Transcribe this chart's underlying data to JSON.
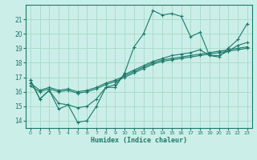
{
  "xlabel": "Humidex (Indice chaleur)",
  "bg_color": "#cceee8",
  "grid_color": "#aaddcc",
  "line_color": "#1a7a6a",
  "xlim": [
    -0.5,
    23.5
  ],
  "ylim": [
    13.5,
    22.0
  ],
  "yticks": [
    14,
    15,
    16,
    17,
    18,
    19,
    20,
    21
  ],
  "xticks": [
    0,
    1,
    2,
    3,
    4,
    5,
    6,
    7,
    8,
    9,
    10,
    11,
    12,
    13,
    14,
    15,
    16,
    17,
    18,
    19,
    20,
    21,
    22,
    23
  ],
  "series": [
    {
      "x": [
        0,
        1,
        2,
        3,
        4,
        5,
        6,
        7,
        8,
        9,
        10,
        11,
        12,
        13,
        14,
        15,
        16,
        17,
        18,
        19,
        20,
        21,
        22,
        23
      ],
      "y": [
        16.8,
        15.5,
        16.1,
        14.8,
        15.1,
        13.9,
        14.0,
        15.0,
        16.3,
        16.3,
        17.3,
        19.1,
        20.0,
        21.6,
        21.3,
        21.4,
        21.2,
        19.8,
        20.1,
        18.5,
        18.4,
        19.0,
        19.6,
        20.7
      ]
    },
    {
      "x": [
        0,
        1,
        2,
        3,
        4,
        5,
        6,
        7,
        8,
        9,
        10,
        11,
        12,
        13,
        14,
        15,
        16,
        17,
        18,
        19,
        20,
        21,
        22,
        23
      ],
      "y": [
        16.8,
        15.5,
        16.1,
        15.2,
        15.1,
        14.9,
        15.0,
        15.5,
        16.3,
        16.5,
        17.2,
        17.5,
        17.8,
        18.1,
        18.3,
        18.5,
        18.6,
        18.7,
        18.9,
        18.5,
        18.5,
        18.8,
        19.2,
        19.4
      ]
    },
    {
      "x": [
        0,
        1,
        2,
        3,
        4,
        5,
        6,
        7,
        8,
        9,
        10,
        11,
        12,
        13,
        14,
        15,
        16,
        17,
        18,
        19,
        20,
        21,
        22,
        23
      ],
      "y": [
        16.4,
        16.0,
        16.2,
        16.0,
        16.1,
        15.9,
        16.0,
        16.2,
        16.5,
        16.7,
        17.0,
        17.3,
        17.6,
        17.9,
        18.1,
        18.2,
        18.3,
        18.4,
        18.5,
        18.6,
        18.7,
        18.8,
        18.9,
        19.0
      ]
    },
    {
      "x": [
        0,
        1,
        2,
        3,
        4,
        5,
        6,
        7,
        8,
        9,
        10,
        11,
        12,
        13,
        14,
        15,
        16,
        17,
        18,
        19,
        20,
        21,
        22,
        23
      ],
      "y": [
        16.6,
        16.1,
        16.3,
        16.1,
        16.2,
        16.0,
        16.1,
        16.3,
        16.6,
        16.8,
        17.1,
        17.4,
        17.7,
        18.0,
        18.2,
        18.3,
        18.4,
        18.5,
        18.6,
        18.7,
        18.8,
        18.9,
        19.0,
        19.1
      ]
    }
  ]
}
